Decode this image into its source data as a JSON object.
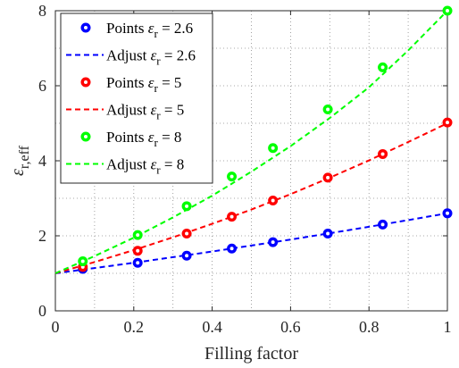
{
  "chart_data": {
    "type": "scatter",
    "title": "",
    "xlabel": "Filling factor",
    "ylabel": "ε",
    "ylabel_subscript": "r,eff",
    "xlim": [
      0,
      1
    ],
    "ylim": [
      0,
      8
    ],
    "xticks": [
      0,
      0.2,
      0.4,
      0.6,
      0.8,
      1
    ],
    "yticks": [
      0,
      2,
      4,
      6,
      8
    ],
    "xtick_labels": [
      "0",
      "0.2",
      "0.4",
      "0.6",
      "0.8",
      "1"
    ],
    "ytick_labels": [
      "0",
      "2",
      "4",
      "6",
      "8"
    ],
    "minor_grid": true,
    "grid": "dotted",
    "legend_position": "top-left",
    "legend": [
      {
        "text": "Points ",
        "sym": "ε",
        "sub": "r",
        "rest": " = 2.6",
        "color": "#0000ff",
        "kind": "marker"
      },
      {
        "text": "Adjust ",
        "sym": "ε",
        "sub": "r",
        "rest": " = 2.6",
        "color": "#0000ff",
        "kind": "line"
      },
      {
        "text": "Points ",
        "sym": "ε",
        "sub": "r",
        "rest": " = 5",
        "color": "#ff0000",
        "kind": "marker"
      },
      {
        "text": "Adjust ",
        "sym": "ε",
        "sub": "r",
        "rest": " = 5",
        "color": "#ff0000",
        "kind": "line"
      },
      {
        "text": "Points ",
        "sym": "ε",
        "sub": "r",
        "rest": " = 8",
        "color": "#00ff00",
        "kind": "marker"
      },
      {
        "text": "Adjust ",
        "sym": "ε",
        "sub": "r",
        "rest": " = 8",
        "color": "#00ff00",
        "kind": "line"
      }
    ],
    "series": [
      {
        "color": "#0000ff",
        "points": [
          [
            0.07,
            1.12
          ],
          [
            0.21,
            1.28
          ],
          [
            0.335,
            1.47
          ],
          [
            0.45,
            1.66
          ],
          [
            0.555,
            1.83
          ],
          [
            0.695,
            2.06
          ],
          [
            0.835,
            2.3
          ],
          [
            1.0,
            2.6
          ]
        ],
        "fit": [
          [
            0,
            1.0
          ],
          [
            0.1,
            1.14
          ],
          [
            0.2,
            1.28
          ],
          [
            0.3,
            1.43
          ],
          [
            0.4,
            1.58
          ],
          [
            0.5,
            1.74
          ],
          [
            0.6,
            1.9
          ],
          [
            0.7,
            2.07
          ],
          [
            0.8,
            2.24
          ],
          [
            0.9,
            2.42
          ],
          [
            1.0,
            2.6
          ]
        ]
      },
      {
        "color": "#ff0000",
        "points": [
          [
            0.07,
            1.17
          ],
          [
            0.21,
            1.6
          ],
          [
            0.335,
            2.06
          ],
          [
            0.45,
            2.51
          ],
          [
            0.555,
            2.94
          ],
          [
            0.695,
            3.55
          ],
          [
            0.835,
            4.18
          ],
          [
            1.0,
            5.02
          ]
        ],
        "fit": [
          [
            0,
            1.0
          ],
          [
            0.1,
            1.3
          ],
          [
            0.2,
            1.62
          ],
          [
            0.3,
            1.96
          ],
          [
            0.4,
            2.32
          ],
          [
            0.5,
            2.7
          ],
          [
            0.6,
            3.11
          ],
          [
            0.7,
            3.55
          ],
          [
            0.8,
            4.01
          ],
          [
            0.9,
            4.5
          ],
          [
            1.0,
            5.0
          ]
        ]
      },
      {
        "color": "#00ff00",
        "points": [
          [
            0.07,
            1.32
          ],
          [
            0.21,
            2.02
          ],
          [
            0.335,
            2.79
          ],
          [
            0.45,
            3.58
          ],
          [
            0.555,
            4.34
          ],
          [
            0.695,
            5.37
          ],
          [
            0.835,
            6.49
          ],
          [
            1.0,
            8.0
          ]
        ],
        "fit": [
          [
            0,
            1.0
          ],
          [
            0.1,
            1.46
          ],
          [
            0.2,
            1.95
          ],
          [
            0.3,
            2.49
          ],
          [
            0.4,
            3.07
          ],
          [
            0.5,
            3.71
          ],
          [
            0.6,
            4.39
          ],
          [
            0.7,
            5.14
          ],
          [
            0.8,
            5.96
          ],
          [
            0.9,
            6.94
          ],
          [
            1.0,
            8.0
          ]
        ]
      }
    ]
  }
}
